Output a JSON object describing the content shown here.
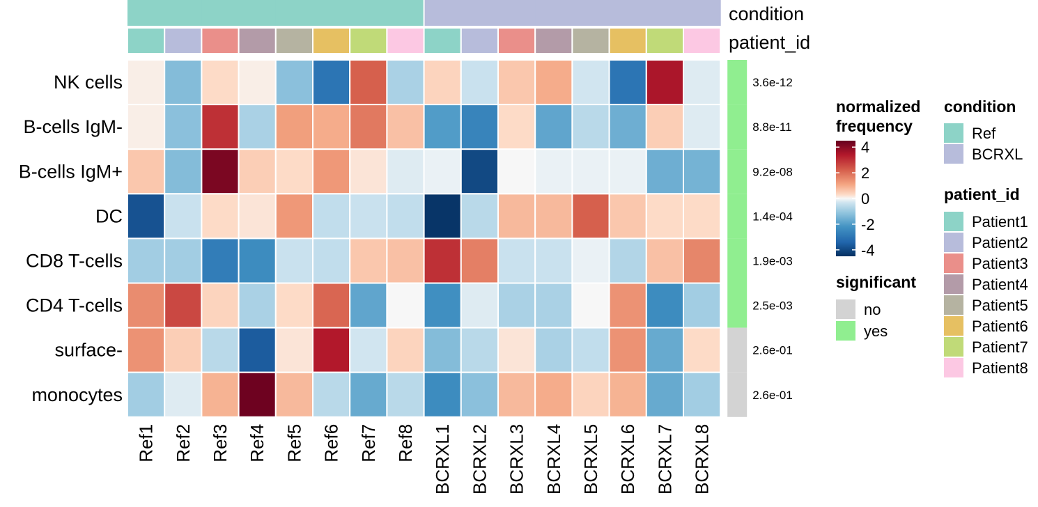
{
  "chart_data": {
    "type": "heatmap",
    "rows": [
      "NK cells",
      "B-cells IgM-",
      "B-cells IgM+",
      "DC",
      "CD8 T-cells",
      "CD4 T-cells",
      "surface-",
      "monocytes"
    ],
    "columns": [
      "Ref1",
      "Ref2",
      "Ref3",
      "Ref4",
      "Ref5",
      "Ref6",
      "Ref7",
      "Ref8",
      "BCRXL1",
      "BCRXL2",
      "BCRXL3",
      "BCRXL4",
      "BCRXL5",
      "BCRXL6",
      "BCRXL7",
      "BCRXL8"
    ],
    "values": [
      [
        0.1,
        -1.3,
        0.3,
        0.1,
        -1.2,
        -3.0,
        2.2,
        -0.8,
        0.4,
        -0.4,
        0.6,
        1.0,
        -0.3,
        -3.0,
        3.5,
        -0.2
      ],
      [
        0.1,
        -1.2,
        3.0,
        -0.8,
        1.2,
        1.0,
        1.8,
        0.7,
        -2.0,
        -2.6,
        0.3,
        -1.8,
        -0.6,
        -1.6,
        0.5,
        -0.2
      ],
      [
        0.6,
        -1.3,
        4.2,
        0.5,
        0.3,
        1.3,
        0.2,
        -0.2,
        -0.1,
        -4.0,
        0.0,
        -0.1,
        -0.1,
        -0.1,
        -1.6,
        -1.5
      ],
      [
        -3.8,
        -0.4,
        0.3,
        0.2,
        1.3,
        -0.5,
        -0.4,
        -0.5,
        -4.4,
        -0.6,
        0.8,
        0.8,
        2.2,
        0.6,
        0.3,
        0.3
      ],
      [
        -0.9,
        -0.9,
        -2.8,
        -2.4,
        -0.4,
        -0.5,
        0.6,
        0.7,
        3.0,
        1.7,
        -0.4,
        -0.4,
        -0.1,
        -0.7,
        0.7,
        1.6
      ],
      [
        1.5,
        2.6,
        0.4,
        -0.8,
        0.3,
        2.1,
        -1.8,
        0.0,
        -2.3,
        -0.2,
        -0.8,
        -0.8,
        0.0,
        1.4,
        -2.4,
        -0.9
      ],
      [
        1.4,
        0.5,
        -0.6,
        -3.6,
        0.2,
        3.4,
        -0.3,
        0.4,
        -1.3,
        -0.6,
        0.2,
        -0.8,
        -0.5,
        1.4,
        -1.7,
        0.3
      ],
      [
        -0.9,
        -0.2,
        0.9,
        4.4,
        0.8,
        -0.6,
        -1.7,
        -0.6,
        -2.4,
        -1.2,
        0.8,
        1.0,
        0.4,
        0.9,
        -1.7,
        -0.9
      ]
    ],
    "p_values": [
      "3.6e-12",
      "8.8e-11",
      "9.2e-08",
      "1.4e-04",
      "1.9e-03",
      "2.5e-03",
      "2.6e-01",
      "2.6e-01"
    ],
    "significant": [
      "yes",
      "yes",
      "yes",
      "yes",
      "yes",
      "yes",
      "no",
      "no"
    ],
    "condition": [
      "Ref",
      "Ref",
      "Ref",
      "Ref",
      "Ref",
      "Ref",
      "Ref",
      "Ref",
      "BCRXL",
      "BCRXL",
      "BCRXL",
      "BCRXL",
      "BCRXL",
      "BCRXL",
      "BCRXL",
      "BCRXL"
    ],
    "patient_id": [
      "Patient1",
      "Patient2",
      "Patient3",
      "Patient4",
      "Patient5",
      "Patient6",
      "Patient7",
      "Patient8",
      "Patient1",
      "Patient2",
      "Patient3",
      "Patient4",
      "Patient5",
      "Patient6",
      "Patient7",
      "Patient8"
    ],
    "annotation_labels": {
      "condition": "condition",
      "patient_id": "patient_id"
    },
    "color_scale": {
      "title_line1": "normalized",
      "title_line2": "frequency",
      "range": [
        -4.5,
        4.5
      ],
      "ticks": [
        4,
        2,
        0,
        -2,
        -4
      ],
      "tick_labels": [
        "4",
        "2",
        "0",
        "-2",
        "-4"
      ],
      "stops": [
        {
          "v": -4.5,
          "c": "#053061"
        },
        {
          "v": -3.4,
          "c": "#2166ac"
        },
        {
          "v": -2.2,
          "c": "#4393c3"
        },
        {
          "v": -1.1,
          "c": "#92c5de"
        },
        {
          "v": -0.3,
          "c": "#d1e5f0"
        },
        {
          "v": 0.0,
          "c": "#f7f7f7"
        },
        {
          "v": 0.3,
          "c": "#fddbc7"
        },
        {
          "v": 1.1,
          "c": "#f4a582"
        },
        {
          "v": 2.2,
          "c": "#d6604d"
        },
        {
          "v": 3.4,
          "c": "#b2182b"
        },
        {
          "v": 4.5,
          "c": "#67001f"
        }
      ]
    },
    "legend_condition": {
      "title": "condition",
      "items": [
        {
          "label": "Ref",
          "color": "#8dd3c7"
        },
        {
          "label": "BCRXL",
          "color": "#b7bcdb"
        }
      ]
    },
    "legend_patient": {
      "title": "patient_id",
      "items": [
        {
          "label": "Patient1",
          "color": "#8dd3c7"
        },
        {
          "label": "Patient2",
          "color": "#b7bcdb"
        },
        {
          "label": "Patient3",
          "color": "#ea8f8a"
        },
        {
          "label": "Patient4",
          "color": "#b39ba8"
        },
        {
          "label": "Patient5",
          "color": "#b5b3a1"
        },
        {
          "label": "Patient6",
          "color": "#e6c062"
        },
        {
          "label": "Patient7",
          "color": "#c0da78"
        },
        {
          "label": "Patient8",
          "color": "#fcc8e3"
        }
      ]
    },
    "legend_significant": {
      "title": "significant",
      "items": [
        {
          "label": "no",
          "color": "#d3d3d3"
        },
        {
          "label": "yes",
          "color": "#90ee90"
        }
      ]
    }
  }
}
